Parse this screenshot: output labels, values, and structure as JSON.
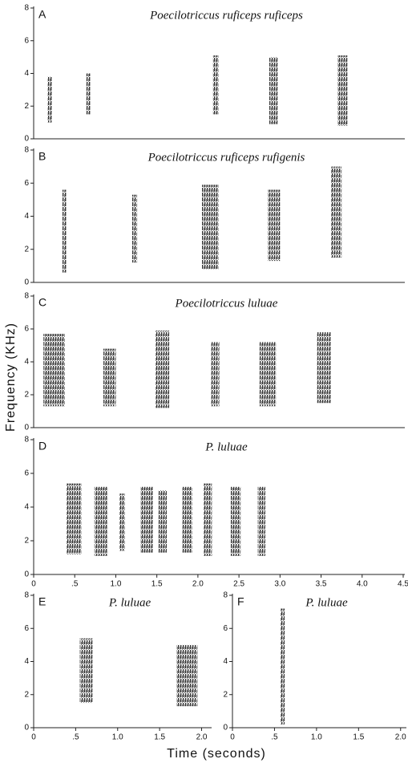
{
  "figure": {
    "ylabel": "Frequency (KHz)",
    "xlabel": "Time (seconds)"
  },
  "chart_data": [
    {
      "type": "spectrogram",
      "label": "A",
      "title": "Poecilotriccus ruficeps ruficeps",
      "xlim": [
        0,
        4.5
      ],
      "ylim": [
        0,
        8
      ],
      "yticks": [
        0,
        2,
        4,
        6,
        8
      ],
      "notes": [
        {
          "t": [
            0.17,
            0.22
          ],
          "f": [
            1.0,
            3.8
          ]
        },
        {
          "t": [
            0.64,
            0.69
          ],
          "f": [
            1.5,
            4.0
          ]
        },
        {
          "t": [
            2.18,
            2.25
          ],
          "f": [
            1.5,
            5.1
          ]
        },
        {
          "t": [
            2.87,
            2.97
          ],
          "f": [
            0.9,
            5.0
          ]
        },
        {
          "t": [
            3.7,
            3.82
          ],
          "f": [
            0.8,
            5.1
          ]
        }
      ]
    },
    {
      "type": "spectrogram",
      "label": "B",
      "title": "Poecilotriccus ruficeps rufigenis",
      "xlim": [
        0,
        4.5
      ],
      "ylim": [
        0,
        8
      ],
      "yticks": [
        0,
        2,
        4,
        6,
        8
      ],
      "notes": [
        {
          "t": [
            0.35,
            0.4
          ],
          "f": [
            0.6,
            5.6
          ]
        },
        {
          "t": [
            1.2,
            1.26
          ],
          "f": [
            1.2,
            5.3
          ]
        },
        {
          "t": [
            2.05,
            2.25
          ],
          "f": [
            0.8,
            5.9
          ]
        },
        {
          "t": [
            2.85,
            3.0
          ],
          "f": [
            1.3,
            5.6
          ]
        },
        {
          "t": [
            3.62,
            3.75
          ],
          "f": [
            1.5,
            7.0
          ]
        }
      ]
    },
    {
      "type": "spectrogram",
      "label": "C",
      "title": "Poecilotriccus luluae",
      "xlim": [
        0,
        4.5
      ],
      "ylim": [
        0,
        8
      ],
      "yticks": [
        0,
        2,
        4,
        6,
        8
      ],
      "notes": [
        {
          "t": [
            0.12,
            0.38
          ],
          "f": [
            1.3,
            5.7
          ]
        },
        {
          "t": [
            0.85,
            1.0
          ],
          "f": [
            1.3,
            4.8
          ]
        },
        {
          "t": [
            1.48,
            1.65
          ],
          "f": [
            1.2,
            5.9
          ]
        },
        {
          "t": [
            2.16,
            2.26
          ],
          "f": [
            1.3,
            5.2
          ]
        },
        {
          "t": [
            2.75,
            2.95
          ],
          "f": [
            1.3,
            5.2
          ]
        },
        {
          "t": [
            3.45,
            3.62
          ],
          "f": [
            1.5,
            5.8
          ]
        }
      ]
    },
    {
      "type": "spectrogram",
      "label": "D",
      "title": "P. luluae",
      "xlim": [
        0,
        4.5
      ],
      "ylim": [
        0,
        8
      ],
      "yticks": [
        0,
        2,
        4,
        6,
        8
      ],
      "xticks": [
        0,
        {
          "value": 0.5,
          "label": ".5"
        },
        {
          "value": 1,
          "label": "1.0"
        },
        {
          "value": 1.5,
          "label": "1.5"
        },
        {
          "value": 2,
          "label": "2.0"
        },
        {
          "value": 2.5,
          "label": "2.5"
        },
        {
          "value": 3,
          "label": "3.0"
        },
        {
          "value": 3.5,
          "label": "3.5"
        },
        {
          "value": 4,
          "label": "4.0"
        },
        {
          "value": 4.5,
          "label": "4.5"
        }
      ],
      "notes": [
        {
          "t": [
            0.4,
            0.58
          ],
          "f": [
            1.2,
            5.4
          ]
        },
        {
          "t": [
            0.74,
            0.9
          ],
          "f": [
            1.1,
            5.2
          ]
        },
        {
          "t": [
            1.04,
            1.11
          ],
          "f": [
            1.4,
            4.8
          ]
        },
        {
          "t": [
            1.3,
            1.45
          ],
          "f": [
            1.3,
            5.2
          ]
        },
        {
          "t": [
            1.52,
            1.62
          ],
          "f": [
            1.3,
            5.0
          ]
        },
        {
          "t": [
            1.81,
            1.93
          ],
          "f": [
            1.3,
            5.2
          ]
        },
        {
          "t": [
            2.07,
            2.17
          ],
          "f": [
            1.1,
            5.4
          ]
        },
        {
          "t": [
            2.4,
            2.52
          ],
          "f": [
            1.1,
            5.2
          ]
        },
        {
          "t": [
            2.73,
            2.82
          ],
          "f": [
            1.1,
            5.2
          ]
        }
      ]
    },
    {
      "type": "spectrogram",
      "label": "E",
      "title": "P. luluae",
      "xlim": [
        0,
        2.1
      ],
      "ylim": [
        0,
        8
      ],
      "yticks": [
        0,
        2,
        4,
        6,
        8
      ],
      "xticks": [
        0,
        {
          "value": 0.5,
          "label": ".5"
        },
        {
          "value": 1,
          "label": "1.0"
        },
        {
          "value": 1.5,
          "label": "1.5"
        },
        {
          "value": 2,
          "label": "2.0"
        }
      ],
      "notes": [
        {
          "t": [
            0.55,
            0.7
          ],
          "f": [
            1.5,
            5.4
          ]
        },
        {
          "t": [
            1.7,
            1.95
          ],
          "f": [
            1.3,
            5.0
          ]
        }
      ]
    },
    {
      "type": "spectrogram",
      "label": "F",
      "title": "P. luluae",
      "xlim": [
        0,
        2.05
      ],
      "ylim": [
        0,
        8
      ],
      "yticks": [
        0,
        2,
        4,
        6,
        8
      ],
      "xticks": [
        0,
        {
          "value": 0.5,
          "label": ".5"
        },
        {
          "value": 1,
          "label": "1.0"
        },
        {
          "value": 1.5,
          "label": "1.5"
        },
        {
          "value": 2,
          "label": "2.0"
        }
      ],
      "notes": [
        {
          "t": [
            0.57,
            0.62
          ],
          "f": [
            0.2,
            7.2
          ]
        }
      ]
    }
  ]
}
